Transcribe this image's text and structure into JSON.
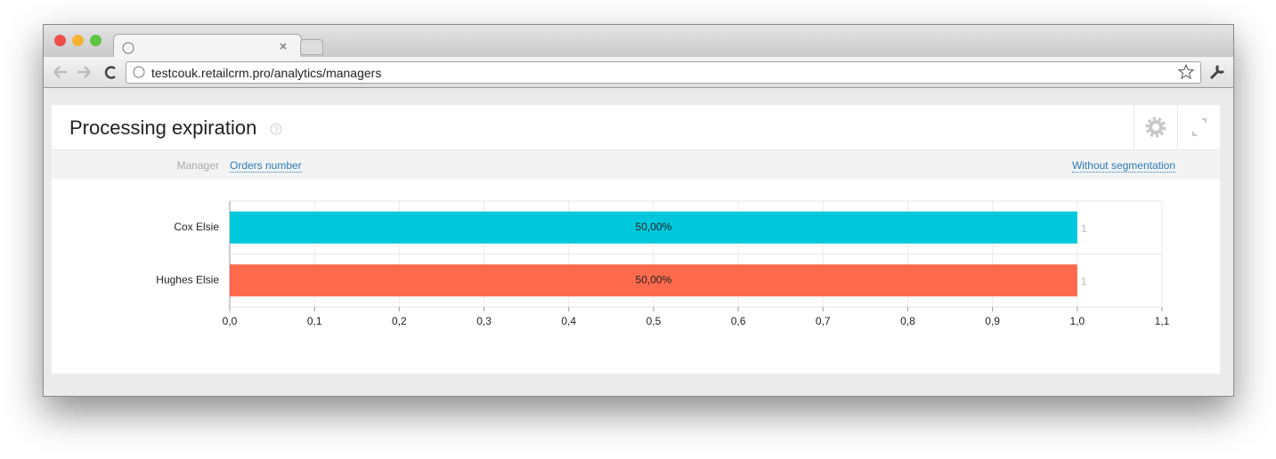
{
  "browser": {
    "url": "testcouk.retailcrm.pro/analytics/managers"
  },
  "widget": {
    "title": "Processing expiration",
    "filters": {
      "group_label": "Manager",
      "metric": "Orders number",
      "segmentation": "Without segmentation"
    }
  },
  "chart_data": {
    "type": "bar",
    "orientation": "horizontal",
    "categories": [
      "Cox Elsie",
      "Hughes Elsie"
    ],
    "values": [
      1,
      1
    ],
    "colors": [
      "#00c8dc",
      "#ff6a4d"
    ],
    "shares": [
      50,
      50
    ],
    "share_labels": [
      "50,00%",
      "50,00%"
    ],
    "xlim": [
      0,
      1.1
    ],
    "xticks": [
      {
        "value": 0,
        "label": "0,0"
      },
      {
        "value": 0.1,
        "label": "0,1"
      },
      {
        "value": 0.2,
        "label": "0,2"
      },
      {
        "value": 0.3,
        "label": "0,3"
      },
      {
        "value": 0.4,
        "label": "0,4"
      },
      {
        "value": 0.5,
        "label": "0,5"
      },
      {
        "value": 0.6,
        "label": "0,6"
      },
      {
        "value": 0.7,
        "label": "0,7"
      },
      {
        "value": 0.8,
        "label": "0,8"
      },
      {
        "value": 0.9,
        "label": "0,9"
      },
      {
        "value": 1,
        "label": "1,0"
      },
      {
        "value": 1.1,
        "label": "1,1"
      }
    ],
    "grid": true
  }
}
